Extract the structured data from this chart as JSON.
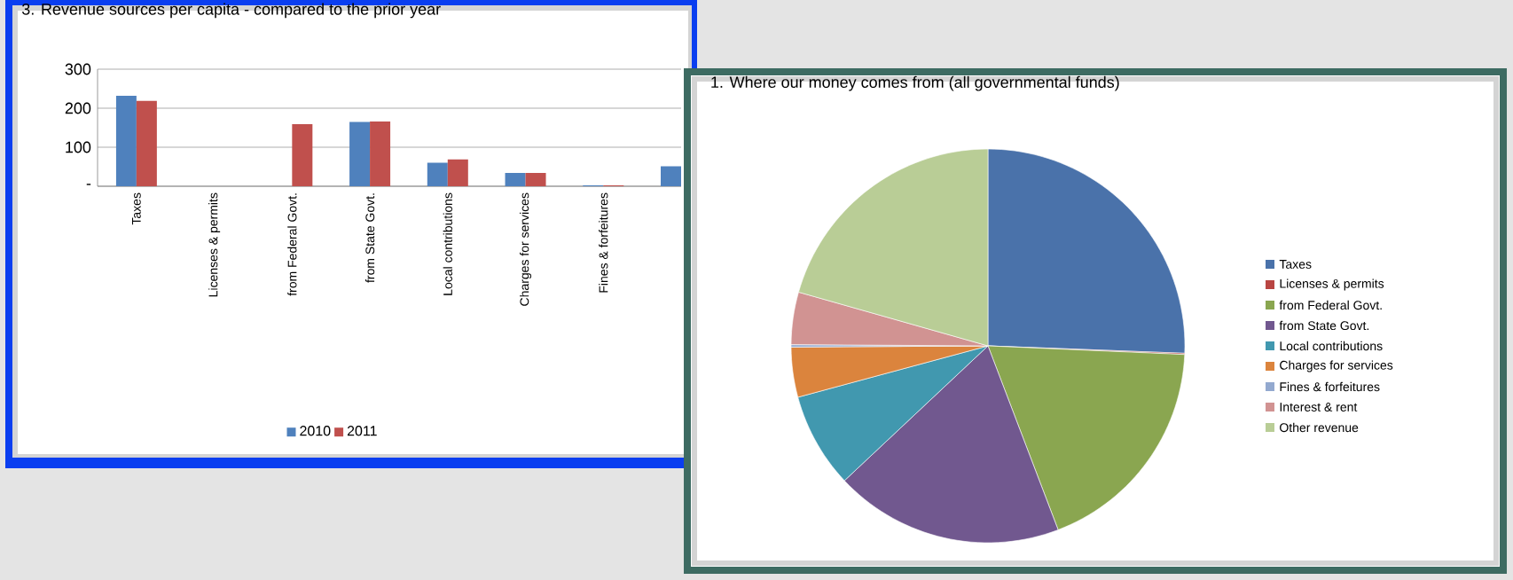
{
  "chart_data": [
    {
      "type": "bar",
      "title": "3. Revenue sources per capita - compared to the prior year",
      "categories": [
        "Taxes",
        "Licenses & permits",
        "from Federal Govt.",
        "from State Govt.",
        "Local contributions",
        "Charges for services",
        "Fines & forfeitures",
        null
      ],
      "series": [
        {
          "name": "2010",
          "color": "#4f81bd",
          "values": [
            232,
            0,
            0,
            165,
            60,
            34,
            2,
            51
          ]
        },
        {
          "name": "2011",
          "color": "#c0504d",
          "values": [
            219,
            0,
            159,
            166,
            69,
            34,
            2,
            null
          ]
        }
      ],
      "ylim": [
        0,
        300
      ],
      "yticks": [
        {
          "value": 0,
          "label": "-"
        },
        100,
        200,
        300
      ],
      "grid": "y",
      "legend": "bottom"
    },
    {
      "type": "pie",
      "title": "1. Where our money comes from (all governmental funds)",
      "categories": [
        "Taxes",
        "Licenses & permits",
        "from Federal Govt.",
        "from State Govt.",
        "Local contributions",
        "Charges for services",
        "Fines & forfeitures",
        "Interest & rent",
        "Other revenue"
      ],
      "values": [
        25.6,
        0.1,
        18.5,
        18.8,
        7.8,
        4.1,
        0.2,
        4.3,
        20.6
      ],
      "colors": [
        "#4a72aa",
        "#b94542",
        "#8aa650",
        "#71588f",
        "#4198af",
        "#db843d",
        "#93a9cf",
        "#d19392",
        "#b9cd96"
      ],
      "legend": "right"
    }
  ]
}
